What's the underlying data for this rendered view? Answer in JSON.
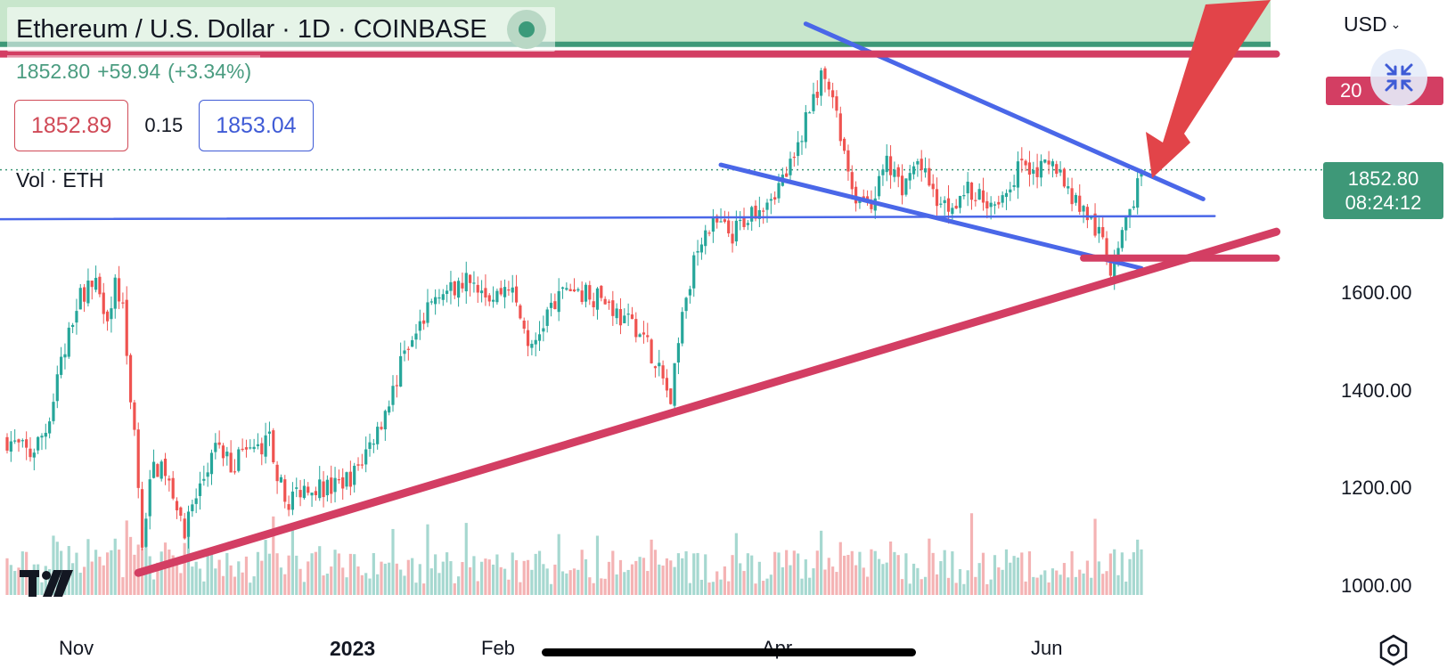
{
  "header": {
    "title": "Ethereum / U.S. Dollar · 1D · COINBASE",
    "price": "1852.80",
    "change": "+59.94",
    "change_pct": "(+3.34%)"
  },
  "quotes": {
    "bid": "1852.89",
    "spread": "0.15",
    "ask": "1853.04"
  },
  "volume_label": "Vol · ETH",
  "price_axis": {
    "currency": "USD",
    "labels": [
      {
        "value": 1600,
        "text": "1600.00"
      },
      {
        "value": 1400,
        "text": "1400.00"
      },
      {
        "value": 1200,
        "text": "1200.00"
      },
      {
        "value": 1000,
        "text": "1000.00"
      }
    ],
    "last_price": "1852.80",
    "countdown": "08:24:12",
    "partial_red_label": "20",
    "partial_hidden_label": "2000.00"
  },
  "time_axis": [
    {
      "text": "Nov",
      "bold": false
    },
    {
      "text": "2023",
      "bold": true
    },
    {
      "text": "Feb",
      "bold": false
    },
    {
      "text": "Apr",
      "bold": false
    },
    {
      "text": "Jun",
      "bold": false
    }
  ],
  "colors": {
    "up": "#26a69a",
    "down": "#ef5350",
    "trend_blue": "#4a67e8",
    "trend_red": "#d33e63",
    "zone_green": "#c8e6cc",
    "arrow_red": "#e24449",
    "accent_green": "#3e9878"
  },
  "icons": {
    "live": "live-status-dot-icon",
    "collapse": "collapse-arrows-icon",
    "settings": "settings-hexagon-icon",
    "logo": "tradingview-logo-icon"
  },
  "chart_data": {
    "type": "candlestick",
    "symbol": "ETH/USD",
    "interval": "1D",
    "exchange": "COINBASE",
    "y_range": [
      1000,
      2150
    ],
    "last_price": 1852.8,
    "path": [
      [
        0,
        1300
      ],
      [
        6,
        1270
      ],
      [
        10,
        1320
      ],
      [
        14,
        1450
      ],
      [
        18,
        1580
      ],
      [
        22,
        1630
      ],
      [
        26,
        1560
      ],
      [
        28,
        1620
      ],
      [
        30,
        1570
      ],
      [
        33,
        1300
      ],
      [
        35,
        1100
      ],
      [
        38,
        1250
      ],
      [
        42,
        1220
      ],
      [
        46,
        1120
      ],
      [
        50,
        1200
      ],
      [
        54,
        1280
      ],
      [
        58,
        1250
      ],
      [
        62,
        1270
      ],
      [
        68,
        1300
      ],
      [
        72,
        1170
      ],
      [
        78,
        1210
      ],
      [
        84,
        1200
      ],
      [
        90,
        1230
      ],
      [
        96,
        1320
      ],
      [
        102,
        1450
      ],
      [
        108,
        1550
      ],
      [
        112,
        1610
      ],
      [
        116,
        1600
      ],
      [
        120,
        1640
      ],
      [
        126,
        1590
      ],
      [
        130,
        1620
      ],
      [
        136,
        1480
      ],
      [
        140,
        1560
      ],
      [
        146,
        1610
      ],
      [
        150,
        1600
      ],
      [
        156,
        1580
      ],
      [
        160,
        1540
      ],
      [
        164,
        1530
      ],
      [
        168,
        1460
      ],
      [
        172,
        1380
      ],
      [
        176,
        1600
      ],
      [
        180,
        1720
      ],
      [
        184,
        1740
      ],
      [
        188,
        1720
      ],
      [
        192,
        1760
      ],
      [
        196,
        1790
      ],
      [
        200,
        1820
      ],
      [
        204,
        1870
      ],
      [
        208,
        1990
      ],
      [
        212,
        2050
      ],
      [
        216,
        1920
      ],
      [
        220,
        1800
      ],
      [
        224,
        1790
      ],
      [
        228,
        1860
      ],
      [
        232,
        1820
      ],
      [
        236,
        1870
      ],
      [
        240,
        1800
      ],
      [
        244,
        1780
      ],
      [
        248,
        1810
      ],
      [
        252,
        1800
      ],
      [
        256,
        1790
      ],
      [
        260,
        1830
      ],
      [
        264,
        1870
      ],
      [
        268,
        1850
      ],
      [
        272,
        1860
      ],
      [
        276,
        1800
      ],
      [
        280,
        1760
      ],
      [
        284,
        1700
      ],
      [
        286,
        1650
      ],
      [
        288,
        1700
      ],
      [
        292,
        1790
      ],
      [
        294,
        1852.8
      ]
    ],
    "trendlines": [
      {
        "color": "blue",
        "from": [
          207,
          2152
        ],
        "to": [
          310,
          1793
        ]
      },
      {
        "color": "blue",
        "from": [
          185,
          1863
        ],
        "to": [
          294,
          1651
        ]
      },
      {
        "color": "blue",
        "from": [
          -34,
          1751
        ],
        "to": [
          313,
          1758
        ]
      },
      {
        "color": "red",
        "from": [
          34,
          1027
        ],
        "to": [
          329,
          1726
        ]
      },
      {
        "color": "red",
        "from": [
          279,
          1672
        ],
        "to": [
          329,
          1672
        ]
      },
      {
        "color": "red",
        "from": [
          -34,
          2090
        ],
        "to": [
          329,
          2090
        ]
      }
    ],
    "zones": [
      {
        "color": "green",
        "from_price": 2110,
        "to_price": 2300
      }
    ]
  }
}
